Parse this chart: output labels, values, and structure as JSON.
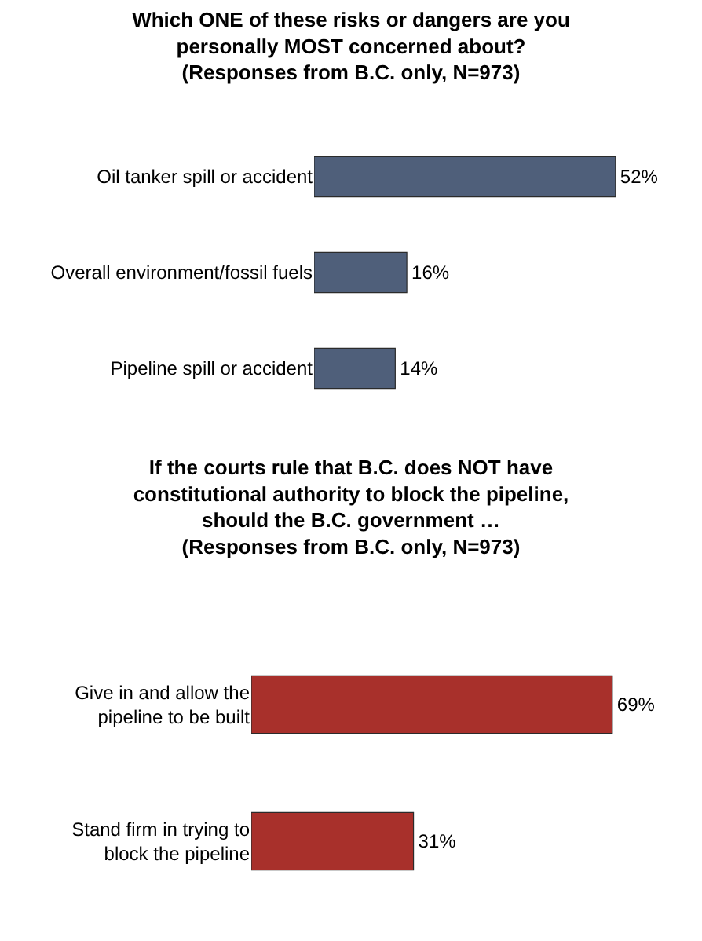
{
  "chart_data": [
    {
      "type": "bar",
      "orientation": "horizontal",
      "title": "Which ONE of these risks or dangers are you personally MOST concerned about?",
      "subtitle": "(Responses from B.C. only, N=973)",
      "categories": [
        "Oil tanker spill or accident",
        "Overall environment/fossil fuels",
        "Pipeline spill or accident"
      ],
      "values": [
        52,
        16,
        14
      ],
      "value_labels": [
        "52%",
        "16%",
        "14%"
      ],
      "color": "#4f5f7a",
      "legend": false
    },
    {
      "type": "bar",
      "orientation": "horizontal",
      "title": "If the courts rule that B.C. does NOT have constitutional authority to block the pipeline, should the B.C. government …",
      "subtitle": "(Responses from B.C. only, N=973)",
      "categories": [
        "Give in and allow the pipeline to be built",
        "Stand firm in trying to block the pipeline"
      ],
      "values": [
        69,
        31
      ],
      "value_labels": [
        "69%",
        "31%"
      ],
      "color": "#a8302b",
      "legend": false
    }
  ]
}
